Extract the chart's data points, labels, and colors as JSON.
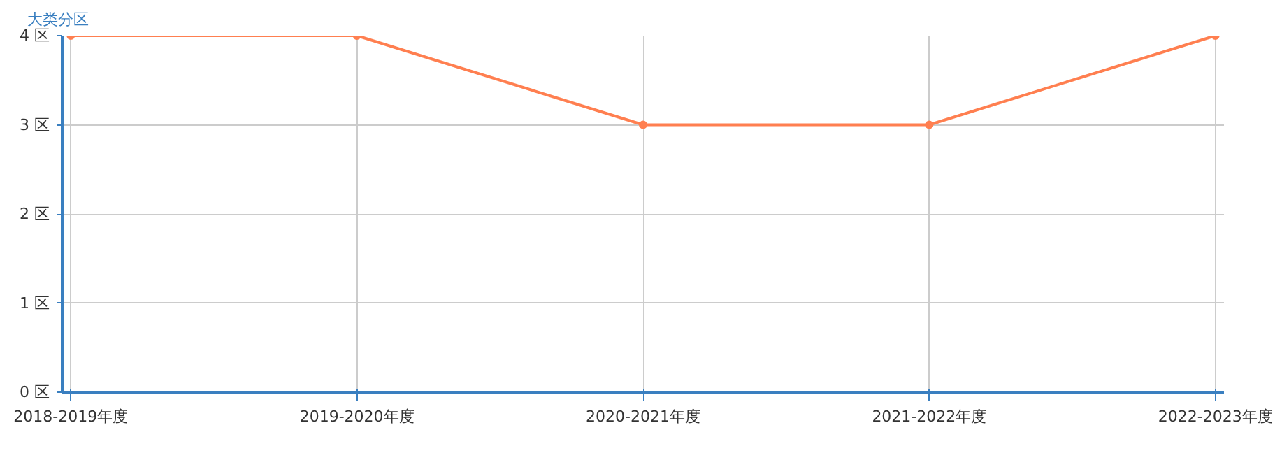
{
  "chart_data": {
    "type": "line",
    "ylabel": "大类分区",
    "categories": [
      "2018-2019年度",
      "2019-2020年度",
      "2020-2021年度",
      "2021-2022年度",
      "2022-2023年度"
    ],
    "series": [
      {
        "color": "#ff7f50",
        "values": [
          4,
          4,
          3,
          3,
          4
        ]
      }
    ],
    "ylim": [
      0,
      4
    ],
    "yticks": [
      {
        "value": 0,
        "label": "0 区"
      },
      {
        "value": 1,
        "label": "1 区"
      },
      {
        "value": 2,
        "label": "2 区"
      },
      {
        "value": 3,
        "label": "3 区"
      },
      {
        "value": 4,
        "label": "4 区"
      }
    ],
    "grid": true,
    "marker": "circle",
    "line_style": "solid"
  }
}
